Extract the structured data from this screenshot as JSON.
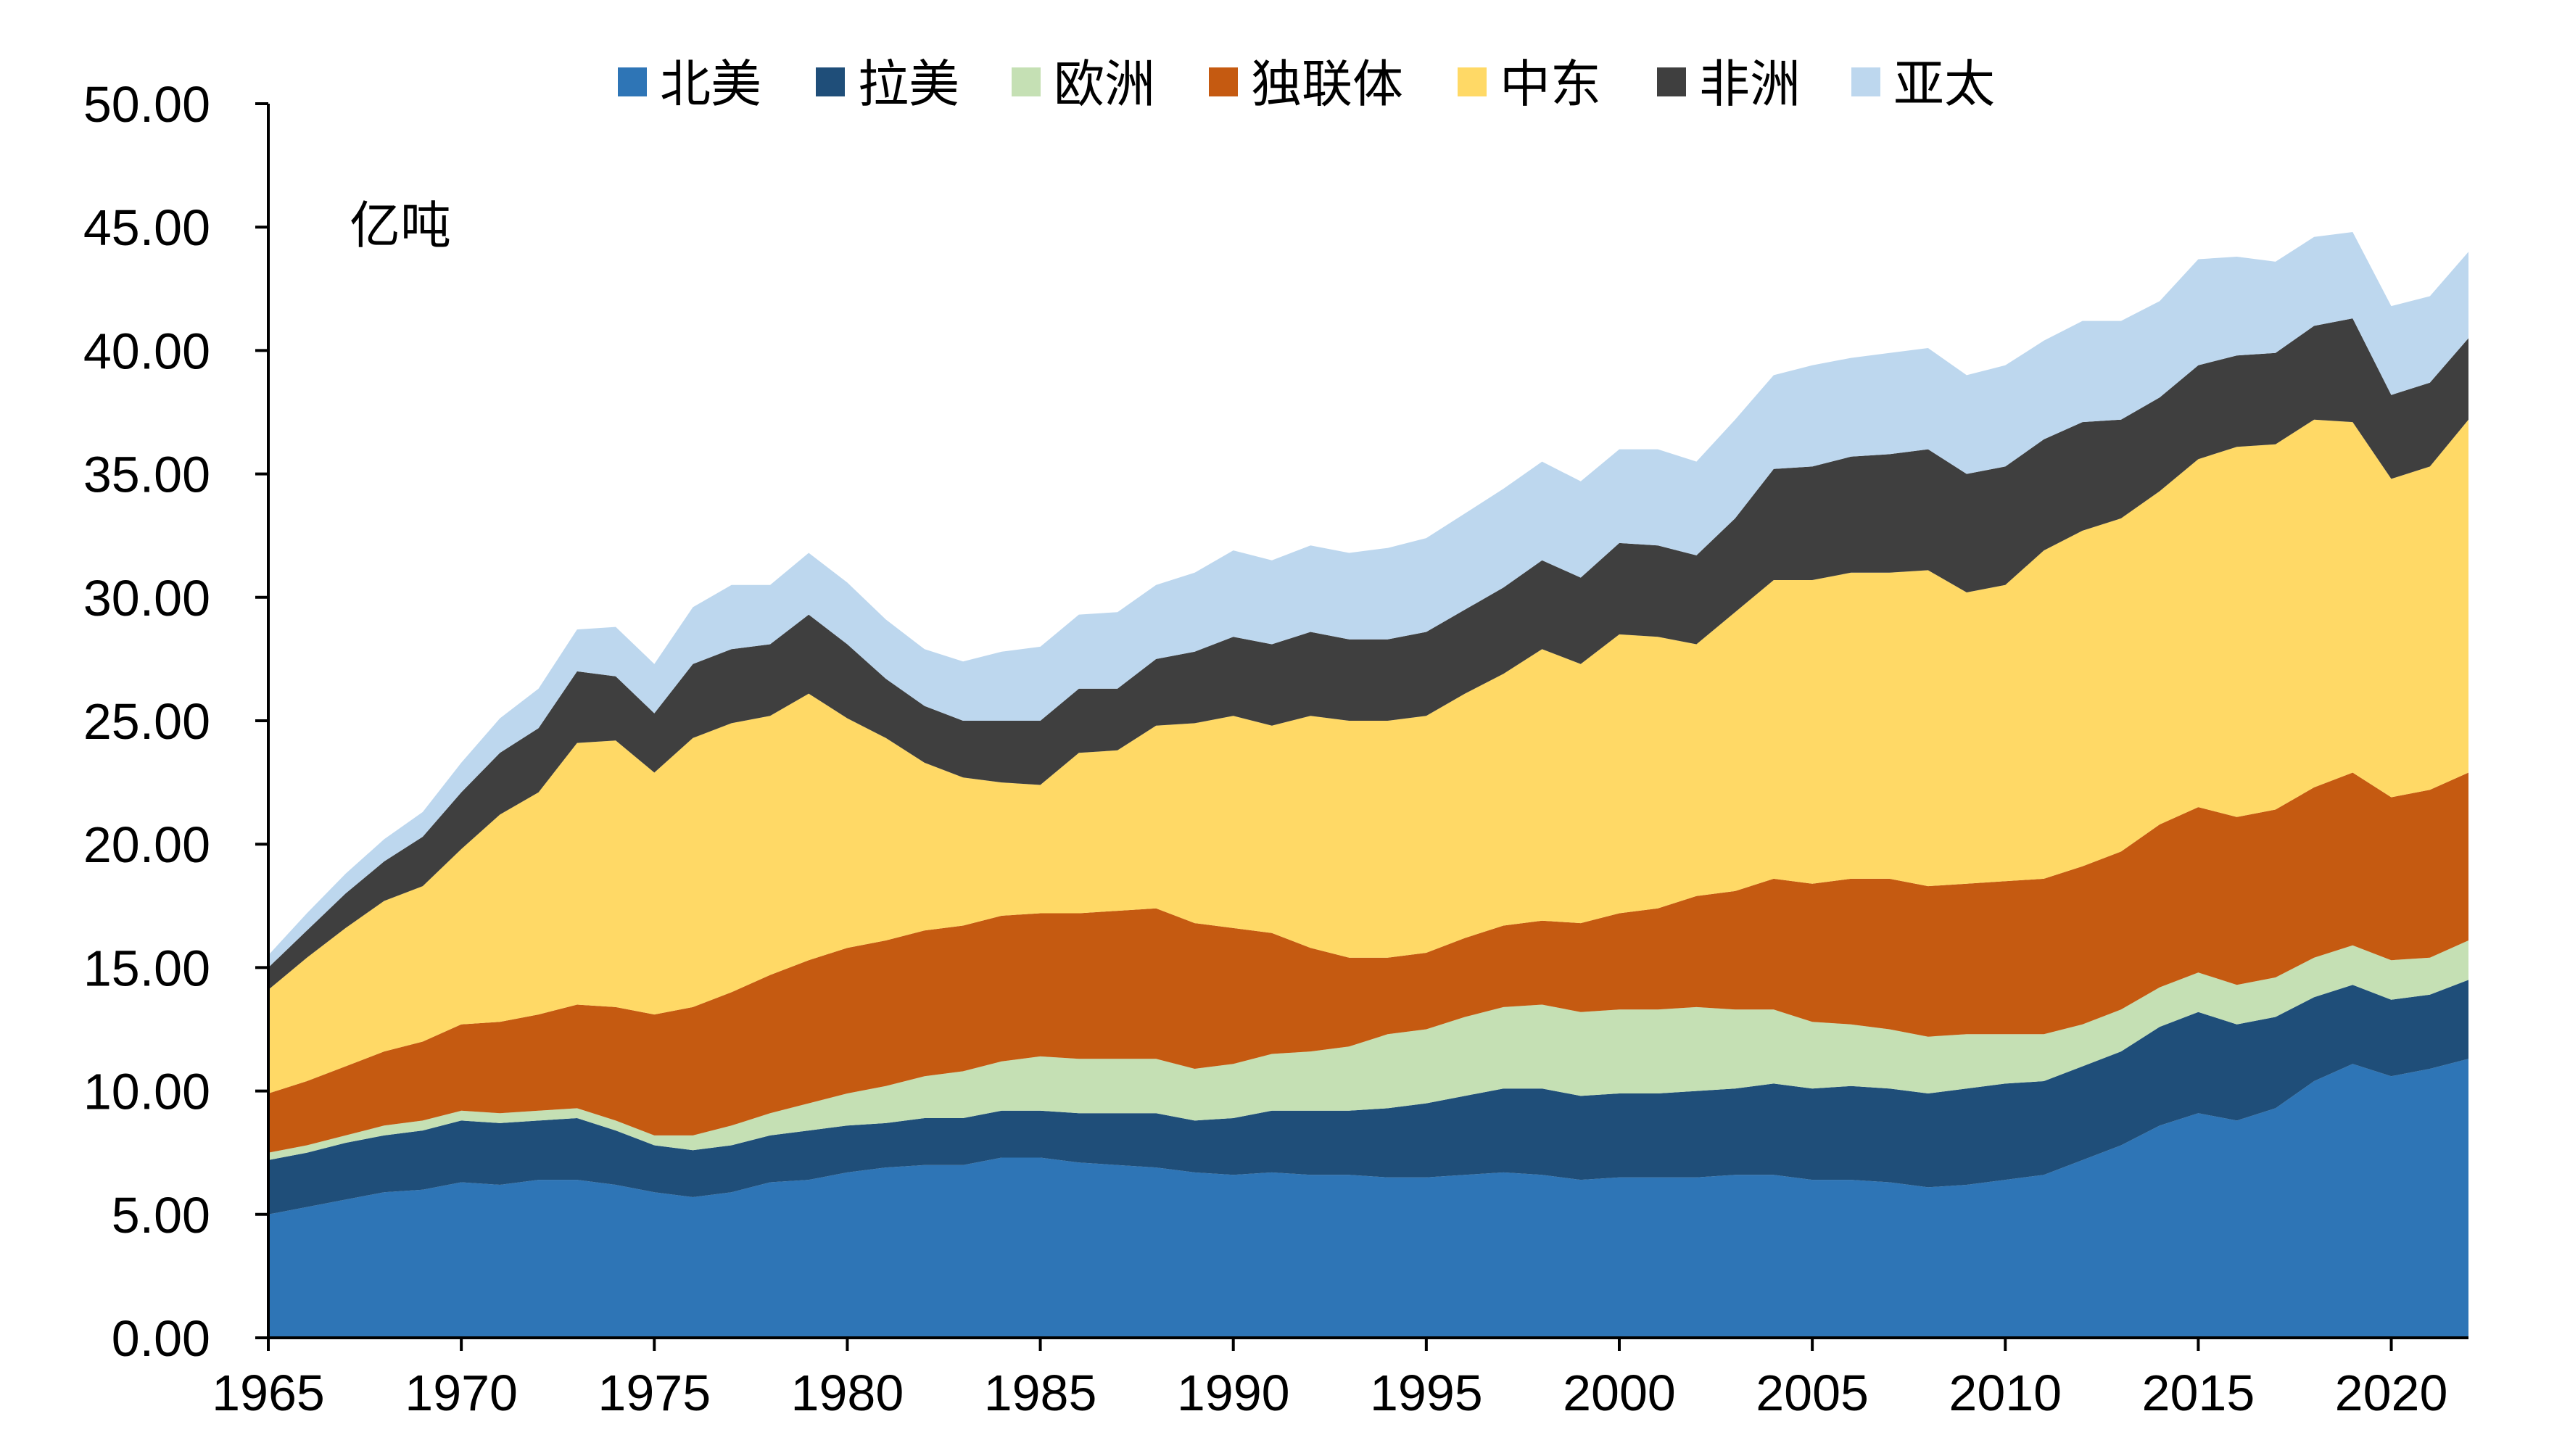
{
  "chart_data": {
    "type": "area",
    "stacked": true,
    "title": "",
    "unit_label": "亿吨",
    "xlabel": "",
    "ylabel": "",
    "ylim": [
      0,
      50
    ],
    "y_ticks": [
      "0.00",
      "5.00",
      "10.00",
      "15.00",
      "20.00",
      "25.00",
      "30.00",
      "35.00",
      "40.00",
      "45.00",
      "50.00"
    ],
    "x_ticks": [
      "1965",
      "1970",
      "1975",
      "1980",
      "1985",
      "1990",
      "1995",
      "2000",
      "2005",
      "2010",
      "2015",
      "2020"
    ],
    "legend_position": "top",
    "grid": false,
    "x": [
      1965,
      1966,
      1967,
      1968,
      1969,
      1970,
      1971,
      1972,
      1973,
      1974,
      1975,
      1976,
      1977,
      1978,
      1979,
      1980,
      1981,
      1982,
      1983,
      1984,
      1985,
      1986,
      1987,
      1988,
      1989,
      1990,
      1991,
      1992,
      1993,
      1994,
      1995,
      1996,
      1997,
      1998,
      1999,
      2000,
      2001,
      2002,
      2003,
      2004,
      2005,
      2006,
      2007,
      2008,
      2009,
      2010,
      2011,
      2012,
      2013,
      2014,
      2015,
      2016,
      2017,
      2018,
      2019,
      2020,
      2021,
      2022
    ],
    "series": [
      {
        "name": "北美",
        "color": "#2E75B6",
        "values": [
          5.0,
          5.3,
          5.6,
          5.9,
          6.0,
          6.3,
          6.2,
          6.4,
          6.4,
          6.2,
          5.9,
          5.7,
          5.9,
          6.3,
          6.4,
          6.7,
          6.9,
          7.0,
          7.0,
          7.3,
          7.3,
          7.1,
          7.0,
          6.9,
          6.7,
          6.6,
          6.7,
          6.6,
          6.6,
          6.5,
          6.5,
          6.6,
          6.7,
          6.6,
          6.4,
          6.5,
          6.5,
          6.5,
          6.6,
          6.6,
          6.4,
          6.4,
          6.3,
          6.1,
          6.2,
          6.4,
          6.6,
          7.2,
          7.8,
          8.6,
          9.1,
          8.8,
          9.3,
          10.4,
          11.1,
          10.6,
          10.9,
          11.3
        ]
      },
      {
        "name": "拉美",
        "color": "#1F4E79",
        "values": [
          2.2,
          2.2,
          2.3,
          2.3,
          2.4,
          2.5,
          2.5,
          2.4,
          2.5,
          2.2,
          1.9,
          1.9,
          1.9,
          1.9,
          2.0,
          1.9,
          1.8,
          1.9,
          1.9,
          1.9,
          1.9,
          2.0,
          2.1,
          2.2,
          2.1,
          2.3,
          2.5,
          2.6,
          2.6,
          2.8,
          3.0,
          3.2,
          3.4,
          3.5,
          3.4,
          3.4,
          3.4,
          3.5,
          3.5,
          3.7,
          3.7,
          3.8,
          3.8,
          3.8,
          3.9,
          3.9,
          3.8,
          3.8,
          3.8,
          4.0,
          4.1,
          3.9,
          3.7,
          3.4,
          3.2,
          3.1,
          3.0,
          3.2
        ]
      },
      {
        "name": "欧洲",
        "color": "#C5E0B4",
        "values": [
          0.3,
          0.3,
          0.3,
          0.4,
          0.4,
          0.4,
          0.4,
          0.4,
          0.4,
          0.4,
          0.4,
          0.6,
          0.8,
          0.9,
          1.1,
          1.3,
          1.5,
          1.7,
          1.9,
          2.0,
          2.2,
          2.2,
          2.2,
          2.2,
          2.1,
          2.2,
          2.3,
          2.4,
          2.6,
          3.0,
          3.0,
          3.2,
          3.3,
          3.4,
          3.4,
          3.4,
          3.4,
          3.4,
          3.2,
          3.0,
          2.7,
          2.5,
          2.4,
          2.3,
          2.2,
          2.0,
          1.9,
          1.7,
          1.7,
          1.6,
          1.6,
          1.6,
          1.6,
          1.6,
          1.6,
          1.6,
          1.5,
          1.6
        ]
      },
      {
        "name": "独联体",
        "color": "#C55A11",
        "values": [
          2.4,
          2.6,
          2.8,
          3.0,
          3.2,
          3.5,
          3.7,
          3.9,
          4.2,
          4.6,
          4.9,
          5.2,
          5.4,
          5.6,
          5.8,
          5.9,
          5.9,
          5.9,
          5.9,
          5.9,
          5.8,
          5.9,
          6.0,
          6.1,
          5.9,
          5.5,
          4.9,
          4.2,
          3.6,
          3.1,
          3.1,
          3.2,
          3.3,
          3.4,
          3.6,
          3.9,
          4.1,
          4.5,
          4.8,
          5.3,
          5.6,
          5.9,
          6.1,
          6.1,
          6.1,
          6.2,
          6.3,
          6.4,
          6.4,
          6.6,
          6.7,
          6.8,
          6.8,
          6.9,
          7.0,
          6.6,
          6.8,
          6.8
        ]
      },
      {
        "name": "中东",
        "color": "#FFD966",
        "values": [
          4.2,
          5.0,
          5.6,
          6.1,
          6.3,
          7.1,
          8.4,
          9.0,
          10.6,
          10.8,
          9.8,
          10.9,
          10.9,
          10.5,
          10.8,
          9.3,
          8.2,
          6.8,
          6.0,
          5.4,
          5.2,
          6.5,
          6.5,
          7.4,
          8.1,
          8.6,
          8.4,
          9.4,
          9.6,
          9.6,
          9.6,
          9.9,
          10.2,
          11.0,
          10.5,
          11.3,
          11.0,
          10.2,
          11.3,
          12.1,
          12.3,
          12.4,
          12.4,
          12.8,
          11.8,
          12.0,
          13.3,
          13.6,
          13.5,
          13.5,
          14.1,
          15.0,
          14.8,
          14.9,
          14.2,
          12.9,
          13.1,
          14.3
        ]
      },
      {
        "name": "非洲",
        "color": "#3F3F3F",
        "values": [
          0.9,
          1.1,
          1.4,
          1.6,
          2.0,
          2.3,
          2.5,
          2.6,
          2.9,
          2.6,
          2.4,
          3.0,
          3.0,
          2.9,
          3.2,
          3.0,
          2.4,
          2.3,
          2.3,
          2.5,
          2.6,
          2.6,
          2.5,
          2.7,
          2.9,
          3.2,
          3.3,
          3.4,
          3.3,
          3.3,
          3.4,
          3.4,
          3.5,
          3.6,
          3.5,
          3.7,
          3.7,
          3.6,
          3.8,
          4.5,
          4.6,
          4.7,
          4.8,
          4.9,
          4.8,
          4.8,
          4.5,
          4.4,
          4.0,
          3.8,
          3.8,
          3.7,
          3.7,
          3.8,
          4.2,
          3.4,
          3.4,
          3.3
        ]
      },
      {
        "name": "亚太",
        "color": "#BDD7EE",
        "values": [
          0.5,
          0.7,
          0.8,
          0.9,
          1.0,
          1.2,
          1.4,
          1.6,
          1.7,
          2.0,
          2.0,
          2.3,
          2.6,
          2.4,
          2.5,
          2.5,
          2.4,
          2.3,
          2.4,
          2.8,
          3.0,
          3.0,
          3.1,
          3.0,
          3.2,
          3.5,
          3.4,
          3.5,
          3.5,
          3.7,
          3.8,
          3.9,
          4.0,
          4.0,
          3.9,
          3.8,
          3.9,
          3.8,
          4.0,
          3.8,
          4.1,
          4.0,
          4.1,
          4.1,
          4.0,
          4.1,
          4.0,
          4.1,
          4.0,
          3.9,
          4.3,
          4.0,
          3.7,
          3.6,
          3.5,
          3.6,
          3.5,
          3.5
        ]
      }
    ]
  }
}
